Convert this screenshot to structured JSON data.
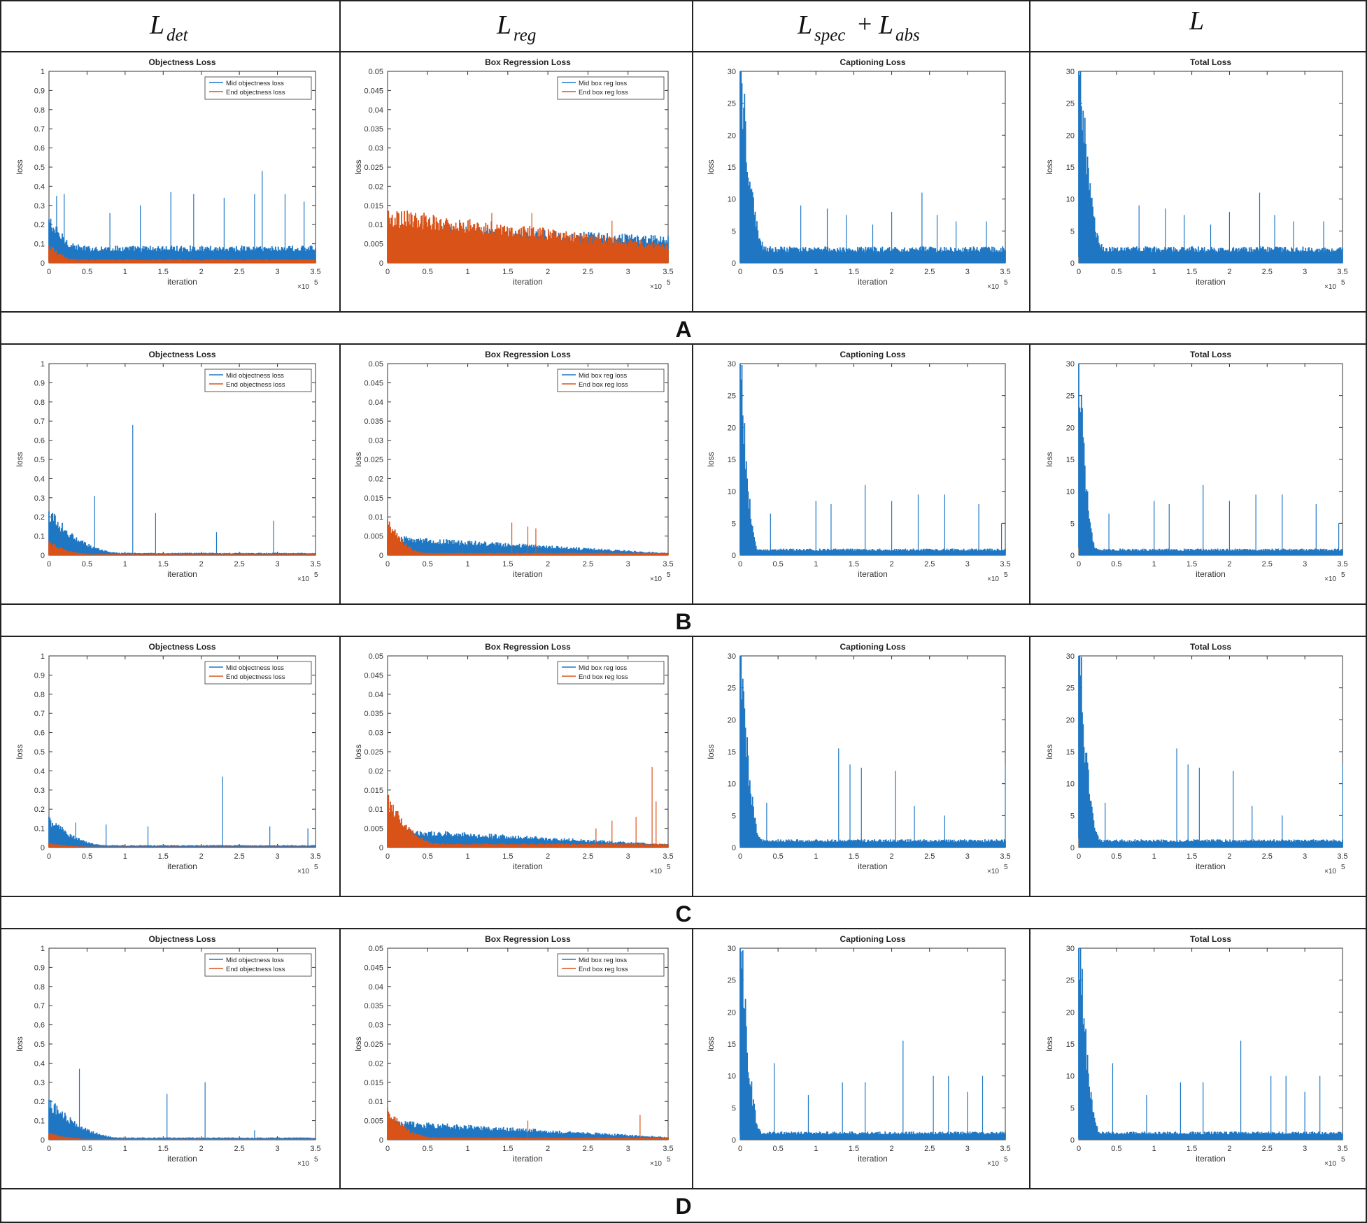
{
  "column_headers": [
    {
      "main": "L",
      "sub": "det"
    },
    {
      "main": "L",
      "sub": "reg"
    },
    {
      "main": "L",
      "sub": "spec",
      "op": "+",
      "main2": "L",
      "sub2": "abs"
    },
    {
      "main": "L"
    }
  ],
  "row_labels": [
    "A",
    "B",
    "C",
    "D"
  ],
  "colors": {
    "mid": "#1f77c4",
    "end": "#d95319",
    "border": "#222222"
  },
  "x_axis": {
    "label": "iteration",
    "ticks": [
      "0",
      "0.5",
      "1",
      "1.5",
      "2",
      "2.5",
      "3",
      "3.5"
    ],
    "multiplier": "×10",
    "multiplier_exp": "5"
  },
  "y_axis_label": "loss",
  "panel_types": [
    {
      "title": "Objectness Loss",
      "ylim": [
        0,
        1
      ],
      "yticks": [
        "0",
        "0.1",
        "0.2",
        "0.3",
        "0.4",
        "0.5",
        "0.6",
        "0.7",
        "0.8",
        "0.9",
        "1"
      ],
      "legend": [
        "Mid objectness loss",
        "End objectness loss"
      ]
    },
    {
      "title": "Box Regression Loss",
      "ylim": [
        0,
        0.05
      ],
      "yticks": [
        "0",
        "0.005",
        "0.01",
        "0.015",
        "0.02",
        "0.025",
        "0.03",
        "0.035",
        "0.04",
        "0.045",
        "0.05"
      ],
      "legend": [
        "Mid box reg loss",
        "End box reg loss"
      ]
    },
    {
      "title": "Captioning Loss",
      "ylim": [
        0,
        30
      ],
      "yticks": [
        "0",
        "5",
        "10",
        "15",
        "20",
        "25",
        "30"
      ],
      "legend": []
    },
    {
      "title": "Total Loss",
      "ylim": [
        0,
        30
      ],
      "yticks": [
        "0",
        "5",
        "10",
        "15",
        "20",
        "25",
        "30"
      ],
      "legend": []
    }
  ],
  "chart_data": [
    {
      "row": "A",
      "type": "line",
      "title": "Objectness Loss",
      "xlabel": "iteration",
      "ylabel": "loss",
      "xlim": [
        0,
        3.5
      ],
      "ylim": [
        0,
        1
      ],
      "series": [
        {
          "name": "Mid objectness loss",
          "band_start": 0.2,
          "band_end": 0.07,
          "decay_end": 0.5,
          "spikes": [
            [
              0.1,
              0.35
            ],
            [
              0.2,
              0.36
            ],
            [
              0.8,
              0.26
            ],
            [
              1.2,
              0.3
            ],
            [
              1.6,
              0.37
            ],
            [
              1.9,
              0.36
            ],
            [
              2.3,
              0.34
            ],
            [
              2.7,
              0.36
            ],
            [
              2.8,
              0.48
            ],
            [
              3.1,
              0.36
            ],
            [
              3.35,
              0.32
            ]
          ]
        },
        {
          "name": "End objectness loss",
          "band_start": 0.08,
          "band_end": 0.015,
          "decay_end": 0.4,
          "spikes": []
        }
      ]
    },
    {
      "row": "A",
      "type": "line",
      "title": "Box Regression Loss",
      "xlabel": "iteration",
      "ylabel": "loss",
      "xlim": [
        0,
        3.5
      ],
      "ylim": [
        0,
        0.05
      ],
      "series": [
        {
          "name": "Mid box reg loss",
          "band_start": 0.008,
          "band_end": 0.0055,
          "decay_end": 0,
          "spikes": []
        },
        {
          "name": "End box reg loss",
          "band_start": 0.011,
          "band_end": 0.004,
          "decay_end": 0,
          "spikes": [
            [
              1.3,
              0.013
            ],
            [
              1.8,
              0.013
            ],
            [
              2.8,
              0.011
            ]
          ]
        }
      ]
    },
    {
      "row": "A",
      "type": "line",
      "title": "Captioning Loss",
      "xlabel": "iteration",
      "ylabel": "loss",
      "xlim": [
        0,
        3.5
      ],
      "ylim": [
        0,
        30
      ],
      "series": [
        {
          "name": "Captioning loss",
          "band_start": 30,
          "band_end": 2,
          "decay_end": 0.35,
          "spikes": [
            [
              0.8,
              9
            ],
            [
              1.15,
              8.5
            ],
            [
              1.4,
              7.5
            ],
            [
              1.75,
              6
            ],
            [
              2.0,
              8
            ],
            [
              2.4,
              11
            ],
            [
              2.6,
              7.5
            ],
            [
              2.85,
              6.5
            ],
            [
              3.25,
              6.5
            ]
          ]
        }
      ]
    },
    {
      "row": "A",
      "type": "line",
      "title": "Total Loss",
      "xlabel": "iteration",
      "ylabel": "loss",
      "xlim": [
        0,
        3.5
      ],
      "ylim": [
        0,
        30
      ],
      "series": [
        {
          "name": "Total loss",
          "band_start": 30,
          "band_end": 2,
          "decay_end": 0.35,
          "spikes": [
            [
              0.8,
              9
            ],
            [
              1.15,
              8.5
            ],
            [
              1.4,
              7.5
            ],
            [
              1.75,
              6
            ],
            [
              2.0,
              8
            ],
            [
              2.4,
              11
            ],
            [
              2.6,
              7.5
            ],
            [
              2.85,
              6.5
            ],
            [
              3.25,
              6.5
            ]
          ]
        }
      ]
    },
    {
      "row": "B",
      "type": "line",
      "title": "Objectness Loss",
      "xlabel": "iteration",
      "ylabel": "loss",
      "xlim": [
        0,
        3.5
      ],
      "ylim": [
        0,
        1
      ],
      "series": [
        {
          "name": "Mid objectness loss",
          "band_start": 0.2,
          "band_end": 0.01,
          "decay_end": 1.0,
          "spikes": [
            [
              0.6,
              0.31
            ],
            [
              1.1,
              0.68
            ],
            [
              1.4,
              0.22
            ],
            [
              2.2,
              0.12
            ],
            [
              2.95,
              0.18
            ]
          ]
        },
        {
          "name": "End objectness loss",
          "band_start": 0.06,
          "band_end": 0.005,
          "decay_end": 0.6,
          "spikes": []
        }
      ]
    },
    {
      "row": "B",
      "type": "line",
      "title": "Box Regression Loss",
      "xlabel": "iteration",
      "ylabel": "loss",
      "xlim": [
        0,
        3.5
      ],
      "ylim": [
        0,
        0.05
      ],
      "series": [
        {
          "name": "Mid box reg loss",
          "band_start": 0.004,
          "band_end": 0.0005,
          "decay_end": 0,
          "spikes": []
        },
        {
          "name": "End box reg loss",
          "band_start": 0.008,
          "band_end": 0.0005,
          "decay_end": 0.5,
          "spikes": [
            [
              1.55,
              0.0085
            ],
            [
              1.75,
              0.0075
            ],
            [
              1.85,
              0.007
            ]
          ]
        }
      ]
    },
    {
      "row": "B",
      "type": "line",
      "title": "Captioning Loss",
      "xlabel": "iteration",
      "ylabel": "loss",
      "xlim": [
        0,
        3.5
      ],
      "ylim": [
        0,
        30
      ],
      "series": [
        {
          "name": "Captioning loss",
          "band_start": 30,
          "band_end": 0.8,
          "decay_end": 0.25,
          "spikes": [
            [
              0.4,
              6.5
            ],
            [
              1.0,
              8.5
            ],
            [
              1.2,
              8
            ],
            [
              1.65,
              11
            ],
            [
              2.0,
              8.5
            ],
            [
              2.35,
              9.5
            ],
            [
              2.7,
              9.5
            ],
            [
              3.15,
              8
            ],
            [
              3.45,
              5
            ]
          ]
        }
      ]
    },
    {
      "row": "B",
      "type": "line",
      "title": "Total Loss",
      "xlabel": "iteration",
      "ylabel": "loss",
      "xlim": [
        0,
        3.5
      ],
      "ylim": [
        0,
        30
      ],
      "series": [
        {
          "name": "Total loss",
          "band_start": 30,
          "band_end": 0.8,
          "decay_end": 0.25,
          "spikes": [
            [
              0.4,
              6.5
            ],
            [
              1.0,
              8.5
            ],
            [
              1.2,
              8
            ],
            [
              1.65,
              11
            ],
            [
              2.0,
              8.5
            ],
            [
              2.35,
              9.5
            ],
            [
              2.7,
              9.5
            ],
            [
              3.15,
              8
            ],
            [
              3.45,
              5
            ]
          ]
        }
      ]
    },
    {
      "row": "C",
      "type": "line",
      "title": "Objectness Loss",
      "xlabel": "iteration",
      "ylabel": "loss",
      "xlim": [
        0,
        3.5
      ],
      "ylim": [
        0,
        1
      ],
      "series": [
        {
          "name": "Mid objectness loss",
          "band_start": 0.14,
          "band_end": 0.01,
          "decay_end": 0.8,
          "spikes": [
            [
              0.35,
              0.13
            ],
            [
              0.75,
              0.12
            ],
            [
              1.3,
              0.11
            ],
            [
              2.28,
              0.37
            ],
            [
              2.9,
              0.11
            ],
            [
              3.4,
              0.1
            ]
          ]
        },
        {
          "name": "End objectness loss",
          "band_start": 0.02,
          "band_end": 0.004,
          "decay_end": 0.6,
          "spikes": []
        }
      ]
    },
    {
      "row": "C",
      "type": "line",
      "title": "Box Regression Loss",
      "xlabel": "iteration",
      "ylabel": "loss",
      "xlim": [
        0,
        3.5
      ],
      "ylim": [
        0,
        0.05
      ],
      "series": [
        {
          "name": "Mid box reg loss",
          "band_start": 0.004,
          "band_end": 0.0007,
          "decay_end": 0,
          "spikes": []
        },
        {
          "name": "End box reg loss",
          "band_start": 0.011,
          "band_end": 0.0008,
          "decay_end": 0.7,
          "spikes": [
            [
              2.6,
              0.005
            ],
            [
              2.8,
              0.007
            ],
            [
              3.1,
              0.008
            ],
            [
              3.3,
              0.021
            ],
            [
              3.35,
              0.012
            ]
          ]
        }
      ]
    },
    {
      "row": "C",
      "type": "line",
      "title": "Captioning Loss",
      "xlabel": "iteration",
      "ylabel": "loss",
      "xlim": [
        0,
        3.5
      ],
      "ylim": [
        0,
        30
      ],
      "series": [
        {
          "name": "Captioning loss",
          "band_start": 30,
          "band_end": 1,
          "decay_end": 0.3,
          "spikes": [
            [
              0.35,
              7
            ],
            [
              1.3,
              15.5
            ],
            [
              1.45,
              13
            ],
            [
              1.6,
              12.5
            ],
            [
              2.05,
              12
            ],
            [
              2.3,
              6.5
            ],
            [
              2.7,
              5
            ],
            [
              3.5,
              13
            ]
          ]
        }
      ]
    },
    {
      "row": "C",
      "type": "line",
      "title": "Total Loss",
      "xlabel": "iteration",
      "ylabel": "loss",
      "xlim": [
        0,
        3.5
      ],
      "ylim": [
        0,
        30
      ],
      "series": [
        {
          "name": "Total loss",
          "band_start": 30,
          "band_end": 1,
          "decay_end": 0.3,
          "spikes": [
            [
              0.35,
              7
            ],
            [
              1.3,
              15.5
            ],
            [
              1.45,
              13
            ],
            [
              1.6,
              12.5
            ],
            [
              2.05,
              12
            ],
            [
              2.3,
              6.5
            ],
            [
              2.7,
              5
            ],
            [
              3.5,
              13
            ]
          ]
        }
      ]
    },
    {
      "row": "D",
      "type": "line",
      "title": "Objectness Loss",
      "xlabel": "iteration",
      "ylabel": "loss",
      "xlim": [
        0,
        3.5
      ],
      "ylim": [
        0,
        1
      ],
      "series": [
        {
          "name": "Mid objectness loss",
          "band_start": 0.18,
          "band_end": 0.01,
          "decay_end": 1.0,
          "spikes": [
            [
              0.4,
              0.37
            ],
            [
              1.55,
              0.24
            ],
            [
              2.05,
              0.3
            ],
            [
              2.7,
              0.05
            ]
          ]
        },
        {
          "name": "End objectness loss",
          "band_start": 0.03,
          "band_end": 0.004,
          "decay_end": 0.6,
          "spikes": []
        }
      ]
    },
    {
      "row": "D",
      "type": "line",
      "title": "Box Regression Loss",
      "xlabel": "iteration",
      "ylabel": "loss",
      "xlim": [
        0,
        3.5
      ],
      "ylim": [
        0,
        0.05
      ],
      "series": [
        {
          "name": "Mid box reg loss",
          "band_start": 0.004,
          "band_end": 0.0006,
          "decay_end": 0,
          "spikes": []
        },
        {
          "name": "End box reg loss",
          "band_start": 0.007,
          "band_end": 0.0005,
          "decay_end": 0.6,
          "spikes": [
            [
              1.75,
              0.005
            ],
            [
              3.15,
              0.0065
            ]
          ]
        }
      ]
    },
    {
      "row": "D",
      "type": "line",
      "title": "Captioning Loss",
      "xlabel": "iteration",
      "ylabel": "loss",
      "xlim": [
        0,
        3.5
      ],
      "ylim": [
        0,
        30
      ],
      "series": [
        {
          "name": "Captioning loss",
          "band_start": 30,
          "band_end": 1,
          "decay_end": 0.3,
          "spikes": [
            [
              0.45,
              12
            ],
            [
              0.9,
              7
            ],
            [
              1.35,
              9
            ],
            [
              1.65,
              9
            ],
            [
              2.15,
              15.5
            ],
            [
              2.55,
              10
            ],
            [
              2.75,
              10
            ],
            [
              3.0,
              7.5
            ],
            [
              3.2,
              10
            ]
          ]
        }
      ]
    },
    {
      "row": "D",
      "type": "line",
      "title": "Total Loss",
      "xlabel": "iteration",
      "ylabel": "loss",
      "xlim": [
        0,
        3.5
      ],
      "ylim": [
        0,
        30
      ],
      "series": [
        {
          "name": "Total loss",
          "band_start": 30,
          "band_end": 1,
          "decay_end": 0.3,
          "spikes": [
            [
              0.45,
              12
            ],
            [
              0.9,
              7
            ],
            [
              1.35,
              9
            ],
            [
              1.65,
              9
            ],
            [
              2.15,
              15.5
            ],
            [
              2.55,
              10
            ],
            [
              2.75,
              10
            ],
            [
              3.0,
              7.5
            ],
            [
              3.2,
              10
            ]
          ]
        }
      ]
    }
  ]
}
